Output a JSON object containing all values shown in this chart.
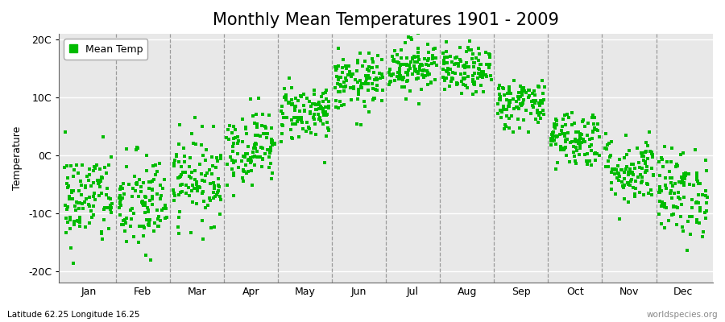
{
  "title": "Monthly Mean Temperatures 1901 - 2009",
  "ylabel": "Temperature",
  "ylim": [
    -22,
    21
  ],
  "yticks": [
    -20,
    -10,
    0,
    10,
    20
  ],
  "ytick_labels": [
    "-20C",
    "-10C",
    "0C",
    "10C",
    "20C"
  ],
  "months": [
    "Jan",
    "Feb",
    "Mar",
    "Apr",
    "May",
    "Jun",
    "Jul",
    "Aug",
    "Sep",
    "Oct",
    "Nov",
    "Dec"
  ],
  "dot_color": "#00BB00",
  "figure_bg_color": "#FFFFFF",
  "axes_bg_color": "#E8E8E8",
  "legend_label": "Mean Temp",
  "footnote_left": "Latitude 62.25 Longitude 16.25",
  "footnote_right": "worldspecies.org",
  "title_fontsize": 15,
  "label_fontsize": 9,
  "tick_fontsize": 9,
  "dot_size": 8,
  "monthly_means": [
    -7.5,
    -8.5,
    -4.0,
    1.5,
    7.5,
    12.5,
    15.5,
    14.5,
    9.0,
    3.0,
    -2.5,
    -6.5
  ],
  "monthly_stds": [
    4.2,
    4.5,
    3.8,
    3.2,
    2.5,
    2.5,
    2.3,
    2.0,
    2.2,
    2.5,
    3.0,
    3.8
  ],
  "n_years": 109,
  "seed": 42
}
